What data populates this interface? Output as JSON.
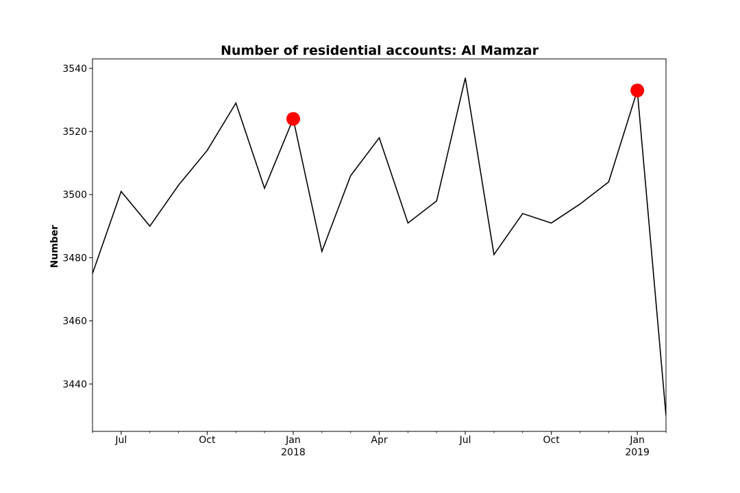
{
  "chart_data": {
    "type": "line",
    "title": "Number of residential accounts: Al Mamzar",
    "xlabel": "",
    "ylabel": "Number",
    "xlim": [
      "2017-06",
      "2019-02"
    ],
    "ylim": [
      3425,
      3543
    ],
    "grid": false,
    "line_color": "#000000",
    "marker_color": "#ff0000",
    "yticks": [
      3440,
      3460,
      3480,
      3500,
      3520,
      3540
    ],
    "xticks": [
      {
        "date": "2017-07",
        "label": "Jul",
        "sublabel": ""
      },
      {
        "date": "2017-10",
        "label": "Oct",
        "sublabel": ""
      },
      {
        "date": "2018-01",
        "label": "Jan",
        "sublabel": "2018"
      },
      {
        "date": "2018-04",
        "label": "Apr",
        "sublabel": ""
      },
      {
        "date": "2018-07",
        "label": "Jul",
        "sublabel": ""
      },
      {
        "date": "2018-10",
        "label": "Oct",
        "sublabel": ""
      },
      {
        "date": "2019-01",
        "label": "Jan",
        "sublabel": "2019"
      }
    ],
    "series": [
      {
        "x": [
          "2017-06",
          "2017-07",
          "2017-08",
          "2017-09",
          "2017-10",
          "2017-11",
          "2017-12",
          "2018-01",
          "2018-02",
          "2018-03",
          "2018-04",
          "2018-05",
          "2018-06",
          "2018-07",
          "2018-08",
          "2018-09",
          "2018-10",
          "2018-11",
          "2018-12",
          "2019-01",
          "2019-02"
        ],
        "values": [
          3475,
          3501,
          3490,
          3503,
          3514,
          3529,
          3502,
          3524,
          3482,
          3506,
          3518,
          3491,
          3498,
          3537,
          3481,
          3494,
          3491,
          3497,
          3504,
          3533,
          3430
        ]
      }
    ],
    "highlighted_points": [
      {
        "x": "2018-01",
        "y": 3524
      },
      {
        "x": "2019-01",
        "y": 3533
      }
    ]
  }
}
